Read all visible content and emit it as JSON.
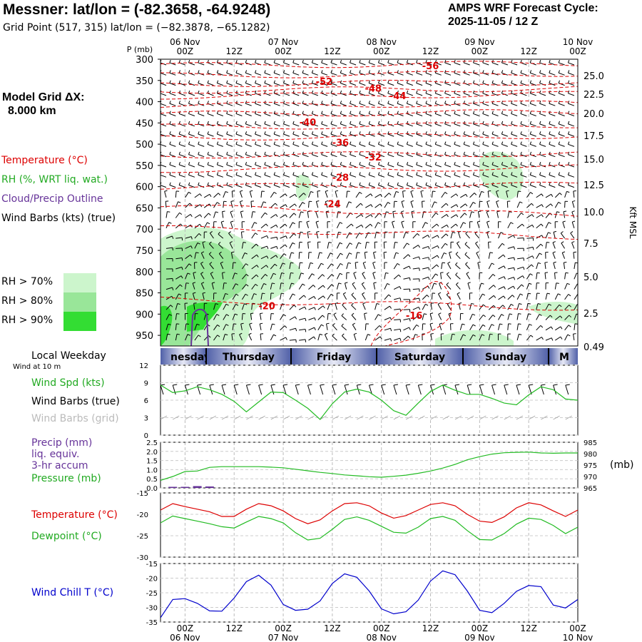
{
  "header": {
    "title": "Messner:  lat/lon = (-82.3658, -64.9248)",
    "grid_point": "Grid Point (517, 315) lat/lon = (−82.3878, −65.1282)",
    "cycle_title": "AMPS WRF Forecast Cycle:",
    "cycle_time": "2025-11-05 / 12  Z"
  },
  "model_grid": {
    "label": "Model Grid ΔX:",
    "value": "8.000 km"
  },
  "legend": {
    "temperature": "Temperature (°C)",
    "rh": "RH (%, WRT liq. wat.)",
    "cloud": "Cloud/Precip Outline",
    "wind": "Wind Barbs (kts) (true)",
    "rh70": "RH > 70%",
    "rh80": "RH > 80%",
    "rh90": "RH > 90%"
  },
  "colors": {
    "temperature": "#dd0000",
    "rh": "#22bb22",
    "cloud": "#663399",
    "rh70": "#ccf5cc",
    "rh80": "#99e699",
    "rh90": "#33dd33",
    "wind_chill": "#0000cc",
    "grid_barbs": "#aaaaaa"
  },
  "time_axis": {
    "hour_labels": [
      "00Z",
      "12Z",
      "00Z",
      "12Z",
      "00Z",
      "12Z",
      "00Z",
      "12Z",
      "00Z",
      "12Z"
    ],
    "date_labels": [
      "06 Nov",
      "07 Nov",
      "08 Nov",
      "09 Nov",
      "10 Nov"
    ],
    "weekdays": [
      "nesday",
      "Thursday",
      "Friday",
      "Saturday",
      "Sunday",
      "M"
    ],
    "local_weekday_label": "Local Weekday",
    "wind10m_label": "Wind at 10 m"
  },
  "chart_data": [
    {
      "type": "heatmap",
      "panel": "vertical cross-section",
      "ylabel": "P (mb)",
      "right_label": "Kft MSL",
      "pressure_levels": [
        300,
        350,
        400,
        450,
        500,
        550,
        600,
        650,
        700,
        750,
        800,
        850,
        900,
        950
      ],
      "height_kft_ticks": [
        "25.0",
        "22.5",
        "20.0",
        "17.5",
        "15.0",
        "12.5",
        "10.0",
        "7.5",
        "5.0",
        "2.5",
        "0.49"
      ],
      "temperature_contour_labels": [
        {
          "value": "-56",
          "time_h": 60,
          "p": 315
        },
        {
          "value": "-52",
          "time_h": 34,
          "p": 352
        },
        {
          "value": "-48",
          "time_h": 46,
          "p": 368
        },
        {
          "value": "-44",
          "time_h": 52,
          "p": 386
        },
        {
          "value": "-40",
          "time_h": 30,
          "p": 448
        },
        {
          "value": "-36",
          "time_h": 38,
          "p": 496
        },
        {
          "value": "-32",
          "time_h": 46,
          "p": 530
        },
        {
          "value": "-28",
          "time_h": 38,
          "p": 578
        },
        {
          "value": "-24",
          "time_h": 36,
          "p": 640
        },
        {
          "value": "-20",
          "time_h": 20,
          "p": 880
        },
        {
          "value": "-16",
          "time_h": 56,
          "p": 903
        }
      ]
    },
    {
      "type": "line",
      "panel": "wind speed",
      "series_labels": [
        "Wind Spd (kts)",
        "Wind Barbs (true)",
        "Wind Barbs (grid)"
      ],
      "yticks": [
        "12",
        "9",
        "6",
        "3",
        "0"
      ],
      "ylim": [
        0,
        12
      ],
      "x_hours": [
        -6,
        -3,
        0,
        3,
        6,
        9,
        12,
        15,
        18,
        21,
        24,
        27,
        30,
        33,
        36,
        39,
        42,
        45,
        48,
        51,
        54,
        57,
        60,
        63,
        66,
        69,
        72,
        75,
        78,
        81,
        84,
        87,
        90,
        93,
        96
      ],
      "wind_speed": [
        8.6,
        7.3,
        7.6,
        8.3,
        7.8,
        7.0,
        5.8,
        4.0,
        5.7,
        7.4,
        7.3,
        6.0,
        4.6,
        2.7,
        5.4,
        7.4,
        7.9,
        7.4,
        6.0,
        4.2,
        3.4,
        5.5,
        7.5,
        8.6,
        7.7,
        7.0,
        7.0,
        6.3,
        5.5,
        5.2,
        6.9,
        8.3,
        7.8,
        6.2,
        6.0
      ]
    },
    {
      "type": "line",
      "panel": "precip and pressure",
      "series_labels": [
        "Precip (mm)",
        "liq. equiv.",
        "3-hr accum",
        "Pressure (mb)"
      ],
      "precip_yticks": [
        "2.5",
        "2.0",
        "1.5",
        "1.0",
        "0.5",
        "0.0"
      ],
      "precip_ylim": [
        0,
        2.5
      ],
      "pressure_yticks": [
        "985",
        "980",
        "975",
        "970",
        "965"
      ],
      "pressure_ylim": [
        965,
        985
      ],
      "pressure_unit": "(mb)",
      "x_hours": [
        -6,
        -3,
        0,
        3,
        6,
        9,
        12,
        15,
        18,
        21,
        24,
        27,
        30,
        33,
        36,
        39,
        42,
        45,
        48,
        51,
        54,
        57,
        60,
        63,
        66,
        69,
        72,
        75,
        78,
        81,
        84,
        87,
        90,
        93,
        96
      ],
      "pressure": [
        968.3,
        970.0,
        972.2,
        972.4,
        974.0,
        974.3,
        974.3,
        974.3,
        974.3,
        974.1,
        973.8,
        973.2,
        972.5,
        971.8,
        971.3,
        970.7,
        970.3,
        969.9,
        969.7,
        970.1,
        970.6,
        971.4,
        972.4,
        973.7,
        975.3,
        977.3,
        978.7,
        979.8,
        980.4,
        980.6,
        980.7,
        980.3,
        980.2,
        980.3,
        980.3
      ],
      "precip_x_hours": [
        -6,
        -3,
        0,
        3,
        6,
        9
      ],
      "precip": [
        0.0,
        0.02,
        0.02,
        0.06,
        0.04,
        0.0
      ]
    },
    {
      "type": "line",
      "panel": "temperature",
      "series_labels": [
        "Temperature (°C)",
        "Dewpoint (°C)"
      ],
      "yticks": [
        "-15",
        "-20",
        "-25",
        "-30"
      ],
      "ylim": [
        -30,
        -15
      ],
      "x_hours": [
        -6,
        -3,
        0,
        3,
        6,
        9,
        12,
        15,
        18,
        21,
        24,
        27,
        30,
        33,
        36,
        39,
        42,
        45,
        48,
        51,
        54,
        57,
        60,
        63,
        66,
        69,
        72,
        75,
        78,
        81,
        84,
        87,
        90,
        93,
        96
      ],
      "temperature": [
        -19.0,
        -17.5,
        -18.2,
        -18.8,
        -19.4,
        -20.5,
        -20.5,
        -18.8,
        -17.5,
        -18.0,
        -19.2,
        -21.0,
        -22.2,
        -21.3,
        -19.2,
        -17.5,
        -17.3,
        -18.0,
        -19.7,
        -20.9,
        -20.3,
        -19.0,
        -17.7,
        -17.3,
        -18.0,
        -20.0,
        -21.6,
        -21.9,
        -20.6,
        -18.5,
        -17.3,
        -17.8,
        -19.2,
        -20.5,
        -19.0
      ],
      "dewpoint": [
        -22.0,
        -20.4,
        -21.0,
        -21.6,
        -22.2,
        -22.9,
        -23.2,
        -21.8,
        -20.5,
        -21.0,
        -22.0,
        -24.3,
        -26.0,
        -25.6,
        -23.5,
        -21.2,
        -20.6,
        -21.4,
        -22.8,
        -24.2,
        -24.4,
        -23.0,
        -21.0,
        -20.5,
        -21.4,
        -23.8,
        -25.9,
        -26.0,
        -24.5,
        -22.3,
        -20.9,
        -21.2,
        -22.6,
        -24.5,
        -23.0
      ]
    },
    {
      "type": "line",
      "panel": "wind chill",
      "series_labels": [
        "Wind Chill T (°C)"
      ],
      "yticks": [
        "-15",
        "-20",
        "-25",
        "-30",
        "-35"
      ],
      "ylim": [
        -35,
        -15
      ],
      "x_hours": [
        -6,
        -3,
        0,
        3,
        6,
        9,
        12,
        15,
        18,
        21,
        24,
        27,
        30,
        33,
        36,
        39,
        42,
        45,
        48,
        51,
        54,
        57,
        60,
        63,
        66,
        69,
        72,
        75,
        78,
        81,
        84,
        87,
        90,
        93,
        96
      ],
      "wind_chill": [
        -33.5,
        -27.3,
        -27.0,
        -28.6,
        -31.2,
        -31.3,
        -26.8,
        -21.2,
        -19.0,
        -22.4,
        -29.0,
        -31.0,
        -30.6,
        -27.8,
        -21.8,
        -18.5,
        -19.7,
        -24.4,
        -30.5,
        -32.2,
        -31.5,
        -27.5,
        -21.0,
        -17.5,
        -18.8,
        -24.4,
        -31.0,
        -31.8,
        -28.6,
        -24.5,
        -22.5,
        -22.9,
        -29.2,
        -30.2,
        -27.3
      ]
    }
  ]
}
